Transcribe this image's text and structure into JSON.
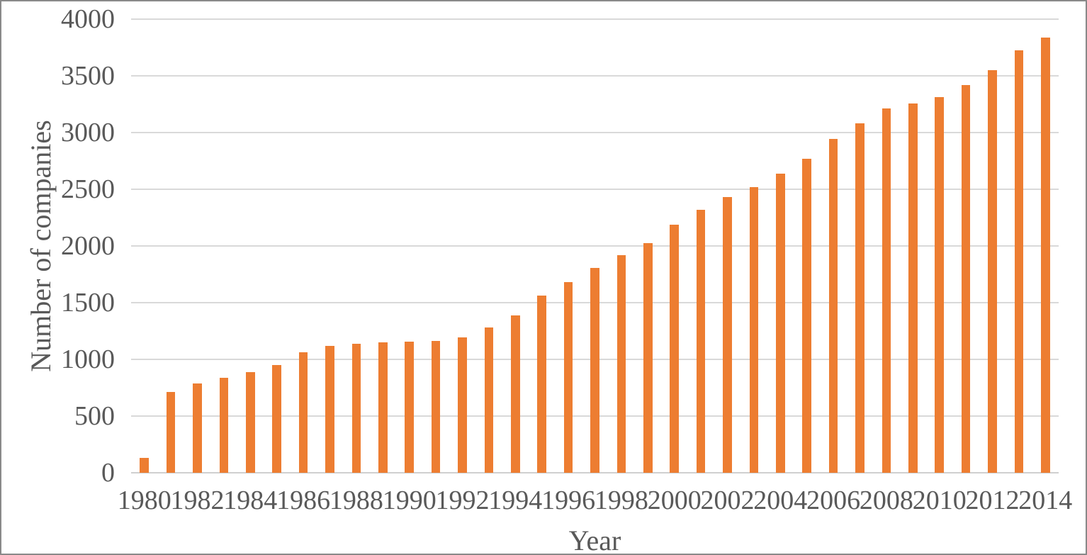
{
  "chart_data": {
    "type": "bar",
    "title": "",
    "xlabel": "Year",
    "ylabel": "Number of companies",
    "categories": [
      "1980",
      "1981",
      "1982",
      "1983",
      "1984",
      "1985",
      "1986",
      "1987",
      "1988",
      "1989",
      "1990",
      "1991",
      "1992",
      "1993",
      "1994",
      "1995",
      "1996",
      "1997",
      "1998",
      "1999",
      "2000",
      "2001",
      "2002",
      "2003",
      "2004",
      "2005",
      "2006",
      "2007",
      "2008",
      "2009",
      "2010",
      "2011",
      "2012",
      "2013",
      "2014"
    ],
    "values": [
      130,
      710,
      790,
      835,
      885,
      950,
      1065,
      1120,
      1140,
      1150,
      1155,
      1160,
      1195,
      1280,
      1390,
      1565,
      1680,
      1805,
      1920,
      2025,
      2190,
      2320,
      2430,
      2520,
      2635,
      2770,
      2945,
      3080,
      3210,
      3255,
      3315,
      3420,
      3550,
      3725,
      3840
    ],
    "ylim": [
      0,
      4000
    ],
    "ytick_step": 500,
    "ytick_labels": [
      "0",
      "500",
      "1000",
      "1500",
      "2000",
      "2500",
      "3000",
      "3500",
      "4000"
    ],
    "xtick_shown_labels": [
      "1980",
      "1982",
      "1984",
      "1986",
      "1988",
      "1990",
      "1992",
      "1994",
      "1996",
      "1998",
      "2000",
      "2002",
      "2004",
      "2006",
      "2008",
      "2010",
      "2012",
      "2014"
    ],
    "xtick_every": 2,
    "grid": "horizontal",
    "legend": "none",
    "bar_color": "#ED7D31",
    "axis_text_color": "#595959",
    "gridline_color": "#D9D9D9",
    "frame_border_color": "#898989",
    "background_color": "#FFFFFF"
  }
}
